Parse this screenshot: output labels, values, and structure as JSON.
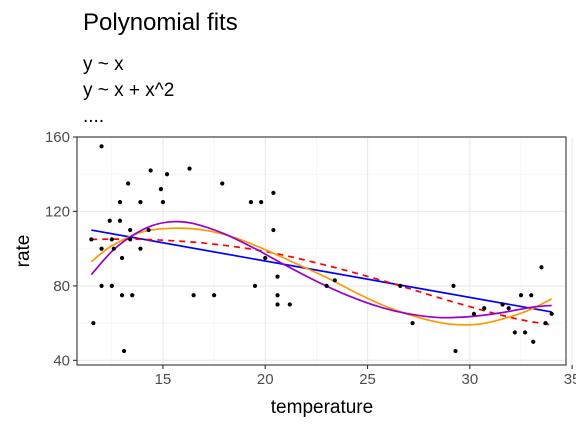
{
  "chart_data": {
    "type": "scatter",
    "title": "Polynomial fits",
    "subtitle_lines": [
      "y ~ x",
      "y ~ x + x^2",
      "...."
    ],
    "xlabel": "temperature",
    "ylabel": "rate",
    "xlim": [
      10.8,
      34.7
    ],
    "ylim": [
      37.5,
      160
    ],
    "x_ticks": [
      15,
      20,
      25,
      30,
      35
    ],
    "y_ticks": [
      40,
      80,
      120,
      160
    ],
    "grid": true,
    "legend": "none",
    "points": [
      {
        "x": 11.5,
        "y": 105
      },
      {
        "x": 11.6,
        "y": 60
      },
      {
        "x": 12.0,
        "y": 155
      },
      {
        "x": 12.0,
        "y": 80
      },
      {
        "x": 12.0,
        "y": 100
      },
      {
        "x": 12.4,
        "y": 115
      },
      {
        "x": 12.5,
        "y": 80
      },
      {
        "x": 12.5,
        "y": 105
      },
      {
        "x": 12.6,
        "y": 100
      },
      {
        "x": 12.9,
        "y": 125
      },
      {
        "x": 12.9,
        "y": 115
      },
      {
        "x": 13.0,
        "y": 95
      },
      {
        "x": 13.0,
        "y": 75
      },
      {
        "x": 13.1,
        "y": 45
      },
      {
        "x": 13.3,
        "y": 135
      },
      {
        "x": 13.5,
        "y": 75
      },
      {
        "x": 13.4,
        "y": 110
      },
      {
        "x": 13.4,
        "y": 105
      },
      {
        "x": 13.9,
        "y": 100
      },
      {
        "x": 13.9,
        "y": 125
      },
      {
        "x": 14.3,
        "y": 110
      },
      {
        "x": 14.4,
        "y": 142
      },
      {
        "x": 14.9,
        "y": 132
      },
      {
        "x": 15.0,
        "y": 125
      },
      {
        "x": 15.2,
        "y": 140
      },
      {
        "x": 16.3,
        "y": 143
      },
      {
        "x": 16.5,
        "y": 75
      },
      {
        "x": 17.5,
        "y": 75
      },
      {
        "x": 17.9,
        "y": 135
      },
      {
        "x": 19.3,
        "y": 125
      },
      {
        "x": 19.5,
        "y": 80
      },
      {
        "x": 19.8,
        "y": 125
      },
      {
        "x": 20.0,
        "y": 95
      },
      {
        "x": 20.4,
        "y": 130
      },
      {
        "x": 20.4,
        "y": 110
      },
      {
        "x": 20.6,
        "y": 85
      },
      {
        "x": 20.6,
        "y": 75
      },
      {
        "x": 20.6,
        "y": 70
      },
      {
        "x": 21.2,
        "y": 70
      },
      {
        "x": 23.0,
        "y": 80
      },
      {
        "x": 23.4,
        "y": 83
      },
      {
        "x": 26.6,
        "y": 80
      },
      {
        "x": 27.2,
        "y": 60
      },
      {
        "x": 29.2,
        "y": 80
      },
      {
        "x": 29.3,
        "y": 45
      },
      {
        "x": 30.2,
        "y": 65
      },
      {
        "x": 30.7,
        "y": 68
      },
      {
        "x": 31.6,
        "y": 70
      },
      {
        "x": 31.9,
        "y": 68
      },
      {
        "x": 32.2,
        "y": 55
      },
      {
        "x": 32.5,
        "y": 75
      },
      {
        "x": 32.7,
        "y": 55
      },
      {
        "x": 33.0,
        "y": 75
      },
      {
        "x": 33.1,
        "y": 50
      },
      {
        "x": 33.5,
        "y": 90
      },
      {
        "x": 33.7,
        "y": 60
      },
      {
        "x": 34.0,
        "y": 65
      }
    ],
    "fits": [
      {
        "formula": "y ~ x",
        "color": "#0000ff",
        "dash": "solid",
        "x": [
          11.5,
          34.0
        ],
        "y": [
          110,
          66
        ]
      },
      {
        "formula": "y ~ x + x^2",
        "color": "#ff0000",
        "dash": "dashed",
        "x": [
          11.5,
          14,
          17,
          20,
          23,
          26,
          29,
          32,
          34.0
        ],
        "y": [
          105,
          105,
          103,
          98.5,
          91,
          82,
          72,
          63,
          59
        ]
      },
      {
        "formula": "cubic",
        "color": "#ff9900",
        "dash": "solid",
        "x": [
          11.5,
          12.5,
          14,
          15.5,
          17,
          18.5,
          20,
          21.5,
          23,
          24.5,
          26,
          27.5,
          29,
          30.5,
          32,
          33,
          34.0
        ],
        "y": [
          93,
          101.5,
          109,
          111,
          110,
          106,
          99.5,
          92,
          84.5,
          76,
          68.5,
          63,
          59.5,
          59.5,
          63.5,
          67.5,
          73
        ]
      },
      {
        "formula": "quartic",
        "color": "#9900cc",
        "dash": "solid",
        "x": [
          11.5,
          12.5,
          13.5,
          14.5,
          15.5,
          16.5,
          18,
          19.5,
          21,
          22.5,
          24,
          25.5,
          27,
          28.5,
          30,
          31.5,
          33,
          34.0
        ],
        "y": [
          86,
          98.5,
          107,
          112.5,
          114.5,
          113.5,
          108,
          100,
          91,
          82.5,
          75,
          69,
          65,
          63,
          63.5,
          65.5,
          68.5,
          69.5
        ]
      }
    ]
  }
}
